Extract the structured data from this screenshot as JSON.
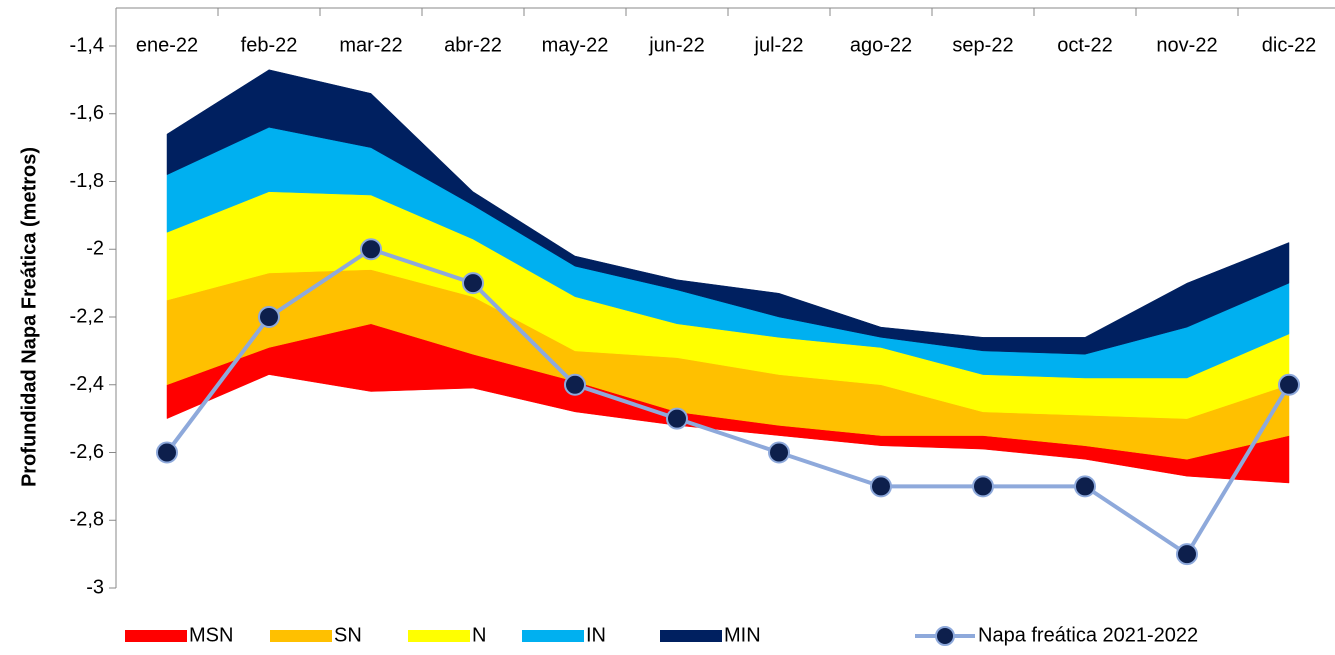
{
  "chart_data": {
    "type": "range-area",
    "y_label": "Profundidad Napa Freática (metros)",
    "categories": [
      "ene-22",
      "feb-22",
      "mar-22",
      "abr-22",
      "may-22",
      "jun-22",
      "jul-22",
      "ago-22",
      "sep-22",
      "oct-22",
      "nov-22",
      "dic-22"
    ],
    "ylim": [
      -3,
      -1.4
    ],
    "yticks": [
      {
        "value": -1.4,
        "label": "-1,4"
      },
      {
        "value": -1.6,
        "label": "-1,6"
      },
      {
        "value": -1.8,
        "label": "-1,8"
      },
      -2,
      {
        "value": -2.2,
        "label": "-2,2"
      },
      {
        "value": -2.4,
        "label": "-2,4"
      },
      {
        "value": -2.6,
        "label": "-2,6"
      },
      {
        "value": -2.8,
        "label": "-2,8"
      },
      -3
    ],
    "bands": [
      {
        "name": "MSN",
        "color": "#ff0000",
        "low": [
          -2.5,
          -2.37,
          -2.42,
          -2.41,
          -2.48,
          -2.52,
          -2.55,
          -2.58,
          -2.59,
          -2.62,
          -2.67,
          -2.69
        ],
        "high": [
          -2.4,
          -2.29,
          -2.22,
          -2.31,
          -2.39,
          -2.48,
          -2.52,
          -2.55,
          -2.55,
          -2.58,
          -2.62,
          -2.55
        ]
      },
      {
        "name": "SN",
        "color": "#ffc000",
        "low": [
          -2.4,
          -2.29,
          -2.22,
          -2.31,
          -2.39,
          -2.48,
          -2.52,
          -2.55,
          -2.55,
          -2.58,
          -2.62,
          -2.55
        ],
        "high": [
          -2.15,
          -2.07,
          -2.06,
          -2.14,
          -2.3,
          -2.32,
          -2.37,
          -2.4,
          -2.48,
          -2.49,
          -2.5,
          -2.4
        ]
      },
      {
        "name": "N",
        "color": "#ffff00",
        "low": [
          -2.15,
          -2.07,
          -2.06,
          -2.14,
          -2.3,
          -2.32,
          -2.37,
          -2.4,
          -2.48,
          -2.49,
          -2.5,
          -2.4
        ],
        "high": [
          -1.95,
          -1.83,
          -1.84,
          -1.97,
          -2.14,
          -2.22,
          -2.26,
          -2.29,
          -2.37,
          -2.38,
          -2.38,
          -2.25
        ]
      },
      {
        "name": "IN",
        "color": "#00b0f0",
        "low": [
          -1.95,
          -1.83,
          -1.84,
          -1.97,
          -2.14,
          -2.22,
          -2.26,
          -2.29,
          -2.37,
          -2.38,
          -2.38,
          -2.25
        ],
        "high": [
          -1.78,
          -1.64,
          -1.7,
          -1.87,
          -2.05,
          -2.12,
          -2.2,
          -2.26,
          -2.3,
          -2.31,
          -2.23,
          -2.1
        ]
      },
      {
        "name": "MIN",
        "color": "#002060",
        "low": [
          -1.78,
          -1.64,
          -1.7,
          -1.87,
          -2.05,
          -2.12,
          -2.2,
          -2.26,
          -2.3,
          -2.31,
          -2.23,
          -2.1
        ],
        "high": [
          -1.66,
          -1.47,
          -1.54,
          -1.83,
          -2.02,
          -2.09,
          -2.13,
          -2.23,
          -2.26,
          -2.26,
          -2.1,
          -1.98
        ]
      }
    ],
    "line": {
      "name": "Napa freática 2021-2022",
      "color": "#8ea9db",
      "marker_color": "#0d1f4c",
      "values": [
        -2.6,
        -2.2,
        -2,
        -2.1,
        -2.4,
        -2.5,
        -2.6,
        -2.7,
        -2.7,
        -2.7,
        -2.9,
        -2.4
      ]
    }
  }
}
